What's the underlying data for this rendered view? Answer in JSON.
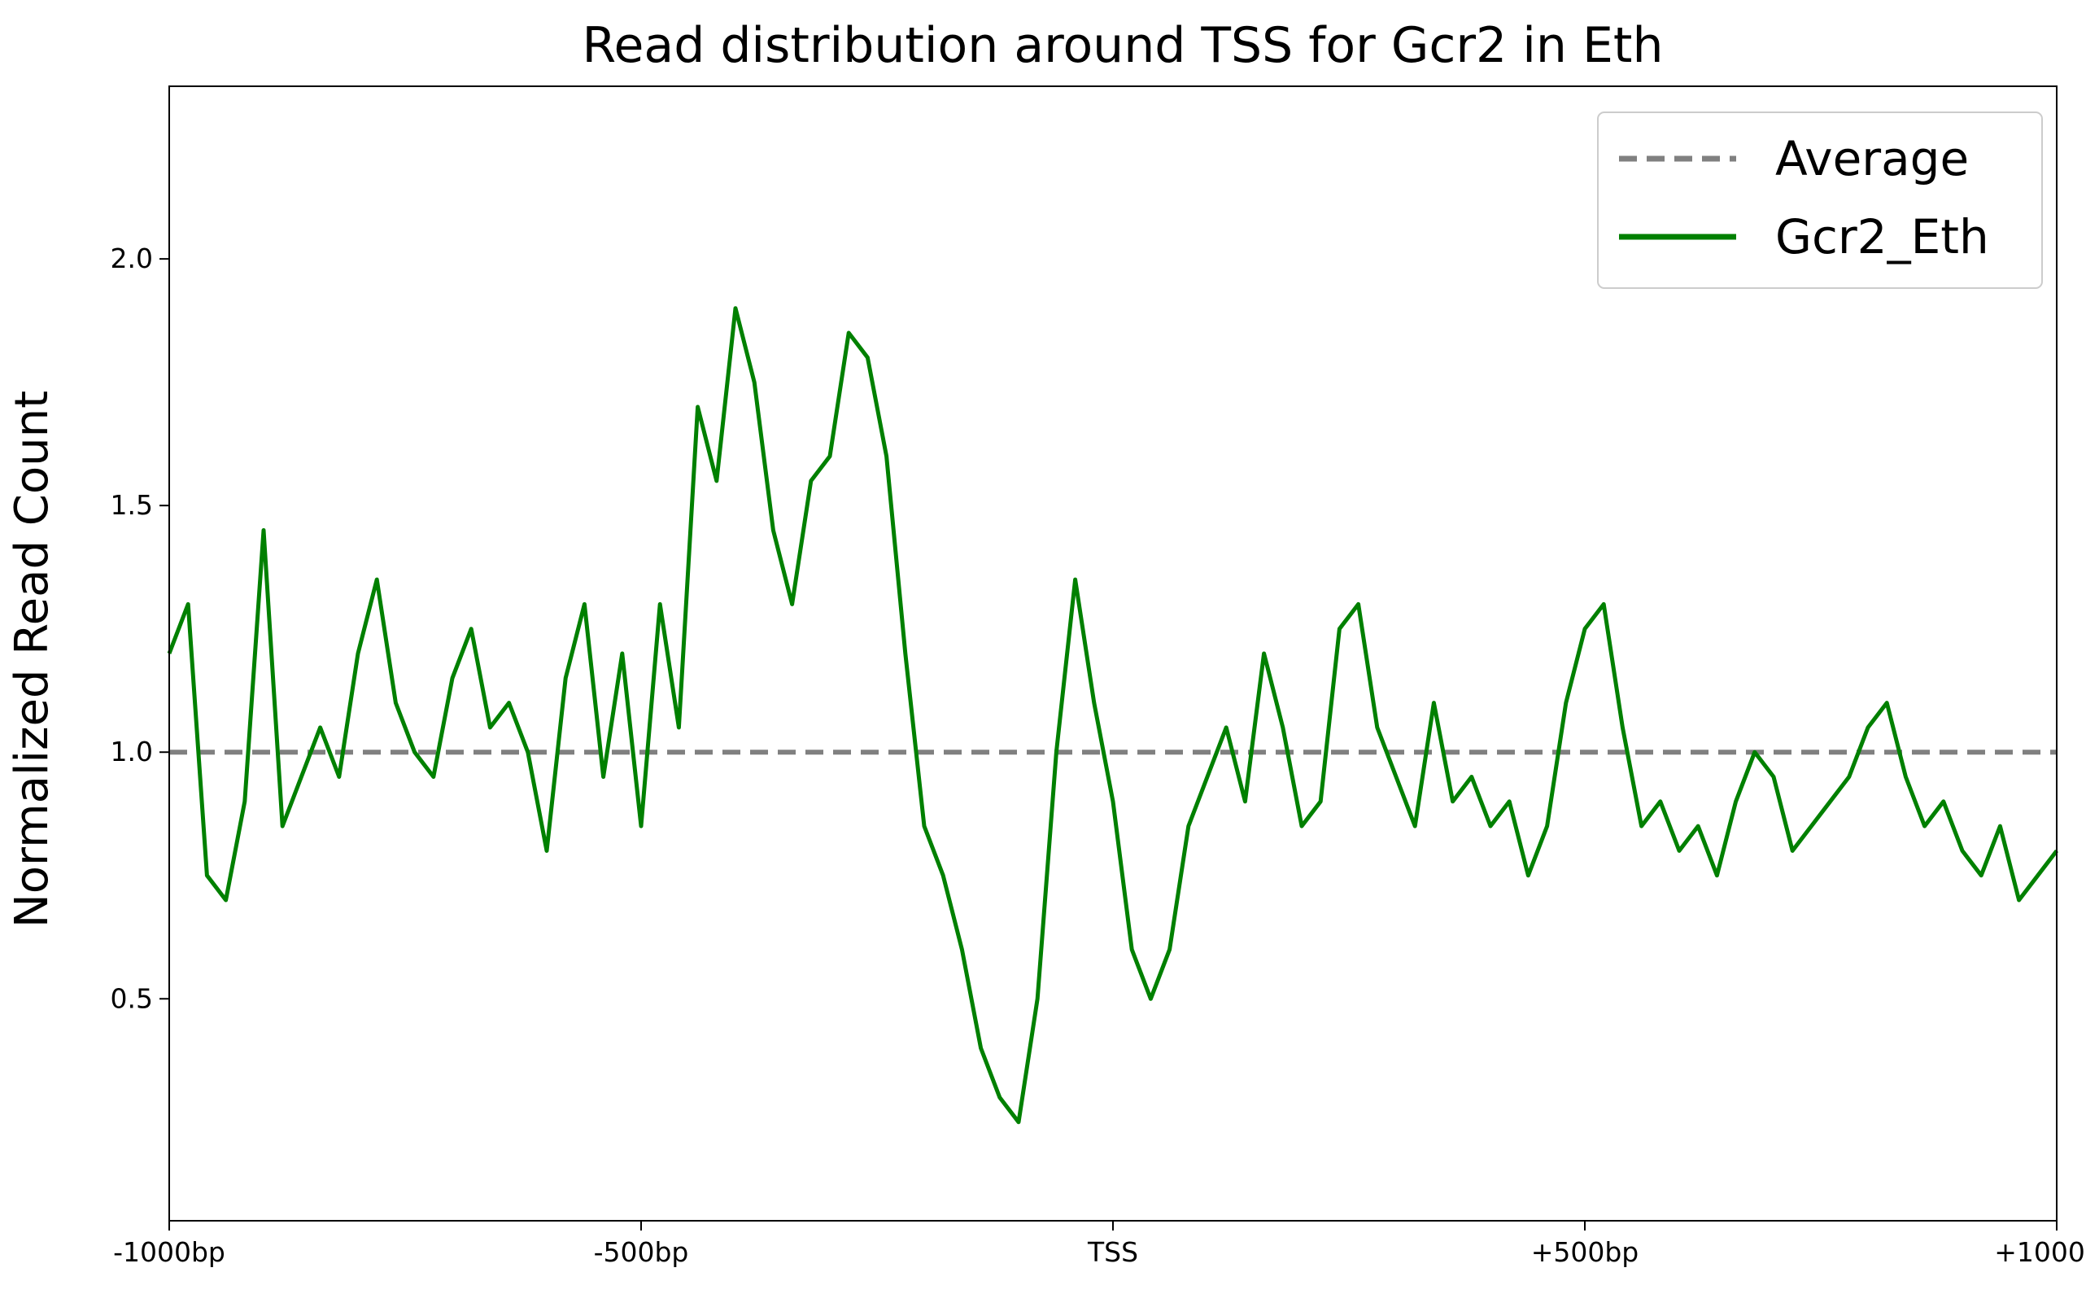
{
  "chart_data": {
    "type": "line",
    "title": "Read distribution around TSS for Gcr2 in Eth",
    "xlabel": "",
    "ylabel": "Normalized Read Count",
    "xlim": [
      -1000,
      1000
    ],
    "ylim": [
      0.05,
      2.35
    ],
    "x_ticks": [
      {
        "value": -1000,
        "label": "-1000bp"
      },
      {
        "value": -500,
        "label": "-500bp"
      },
      {
        "value": 0,
        "label": "TSS"
      },
      {
        "value": 500,
        "label": "+500bp"
      },
      {
        "value": 1000,
        "label": "+1000bp"
      }
    ],
    "y_ticks": [
      {
        "value": 0.5,
        "label": "0.5"
      },
      {
        "value": 1.0,
        "label": "1.0"
      },
      {
        "value": 1.5,
        "label": "1.5"
      },
      {
        "value": 2.0,
        "label": "2.0"
      }
    ],
    "grid": false,
    "legend_position": "top-right",
    "legend": [
      {
        "label": "Average",
        "color": "#808080",
        "style": "dashed"
      },
      {
        "label": "Gcr2_Eth",
        "color": "#008000",
        "style": "solid"
      }
    ],
    "series": [
      {
        "name": "Average",
        "color": "#808080",
        "style": "dashed",
        "x": [
          -1000,
          1000
        ],
        "y": [
          1.0,
          1.0
        ]
      },
      {
        "name": "Gcr2_Eth",
        "color": "#008000",
        "style": "solid",
        "x": [
          -1000,
          -980,
          -960,
          -940,
          -920,
          -900,
          -880,
          -860,
          -840,
          -820,
          -800,
          -780,
          -760,
          -740,
          -720,
          -700,
          -680,
          -660,
          -640,
          -620,
          -600,
          -580,
          -560,
          -540,
          -520,
          -500,
          -480,
          -460,
          -440,
          -420,
          -400,
          -380,
          -360,
          -340,
          -320,
          -300,
          -280,
          -260,
          -240,
          -220,
          -200,
          -180,
          -160,
          -140,
          -120,
          -100,
          -80,
          -60,
          -40,
          -20,
          0,
          20,
          40,
          60,
          80,
          100,
          120,
          140,
          160,
          180,
          200,
          220,
          240,
          260,
          280,
          300,
          320,
          340,
          360,
          380,
          400,
          420,
          440,
          460,
          480,
          500,
          520,
          540,
          560,
          580,
          600,
          620,
          640,
          660,
          680,
          700,
          720,
          740,
          760,
          780,
          800,
          820,
          840,
          860,
          880,
          900,
          920,
          940,
          960,
          980,
          1000
        ],
        "y": [
          1.2,
          1.3,
          0.75,
          0.7,
          0.9,
          1.45,
          0.85,
          0.95,
          1.05,
          0.95,
          1.2,
          1.35,
          1.1,
          1.0,
          0.95,
          1.15,
          1.25,
          1.05,
          1.1,
          1.0,
          0.8,
          1.15,
          1.3,
          0.95,
          1.2,
          0.85,
          1.3,
          1.05,
          1.7,
          1.55,
          1.9,
          1.75,
          1.45,
          1.3,
          1.55,
          1.6,
          1.85,
          1.8,
          1.6,
          1.2,
          0.85,
          0.75,
          0.6,
          0.4,
          0.3,
          0.25,
          0.5,
          1.0,
          1.35,
          1.1,
          0.9,
          0.6,
          0.5,
          0.6,
          0.85,
          0.95,
          1.05,
          0.9,
          1.2,
          1.05,
          0.85,
          0.9,
          1.25,
          1.3,
          1.05,
          0.95,
          0.85,
          1.1,
          0.9,
          0.95,
          0.85,
          0.9,
          0.75,
          0.85,
          1.1,
          1.25,
          1.3,
          1.05,
          0.85,
          0.9,
          0.8,
          0.85,
          0.75,
          0.9,
          1.0,
          0.95,
          0.8,
          0.85,
          0.9,
          0.95,
          1.05,
          1.1,
          0.95,
          0.85,
          0.9,
          0.8,
          0.75,
          0.85,
          0.7,
          0.75,
          0.8
        ]
      }
    ]
  }
}
